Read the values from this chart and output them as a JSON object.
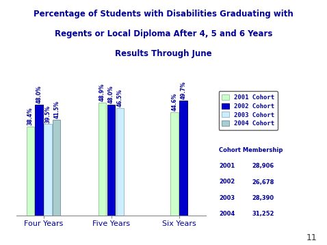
{
  "title_line1": "Percentage of Students with Disabilities Graduating with",
  "title_line2": "Regents or Local Diploma After 4, 5 and 6 Years",
  "title_line3": "Results Through June",
  "groups": [
    "Four Years",
    "Five Years",
    "Six Years"
  ],
  "cohorts": [
    "2001 Cohort",
    "2002 Cohort",
    "2003 Cohort",
    "2004 Cohort"
  ],
  "values": [
    [
      38.4,
      48.0,
      39.5,
      41.5
    ],
    [
      48.9,
      48.0,
      46.5,
      null
    ],
    [
      44.6,
      49.7,
      null,
      null
    ]
  ],
  "bar_colors": [
    "#ccffcc",
    "#0000cc",
    "#cceeff",
    "#aacccc"
  ],
  "bar_edge_colors": [
    "#99cc99",
    "#000088",
    "#99bbcc",
    "#7799aa"
  ],
  "title_color": "#000099",
  "label_color": "#000099",
  "legend_text_color": "#000099",
  "background_color": "#ffffff",
  "ylim": [
    0,
    55
  ],
  "membership": {
    "2001": "28,906",
    "2002": "26,678",
    "2003": "28,390",
    "2004": "31,252"
  },
  "page_number": "11"
}
